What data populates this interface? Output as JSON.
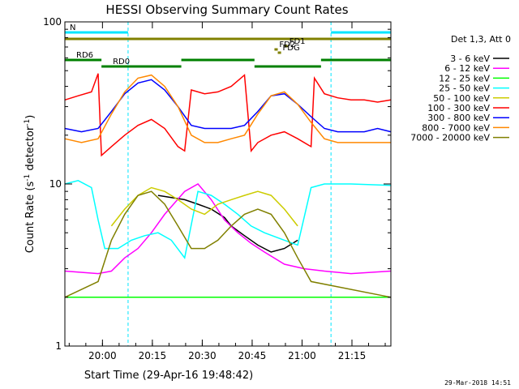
{
  "chart_data": {
    "type": "line",
    "title": "HESSI Observing Summary Count Rates",
    "xlabel": "Start Time (29-Apr-16 19:48:42)",
    "ylabel": "Count Rate (s",
    "ylabel_exp": "-1",
    "ylabel_tail": " detector",
    "ylabel_end": ")",
    "footer": "29-Mar-2018 14:51",
    "x_unit": "minutes since 19:48:42",
    "xlim": [
      0,
      98
    ],
    "ylim": [
      1,
      100
    ],
    "yscale": "log",
    "grid": false,
    "legend_position": "right",
    "x_ticks": [
      {
        "value": 11.3,
        "label": "20:00"
      },
      {
        "value": 26.3,
        "label": "20:15"
      },
      {
        "value": 41.3,
        "label": "20:30"
      },
      {
        "value": 56.3,
        "label": "20:45"
      },
      {
        "value": 71.3,
        "label": "21:00"
      },
      {
        "value": 86.3,
        "label": "21:15"
      }
    ],
    "y_ticks": [
      {
        "value": 1,
        "label": "1"
      },
      {
        "value": 10,
        "label": "10"
      },
      {
        "value": 100,
        "label": "100"
      }
    ],
    "legend_header": "Det 1,3, Att 0",
    "series": [
      {
        "name": "3 - 6 keV",
        "color": "#000000",
        "x": [
          0,
          20,
          28,
          36,
          40,
          44,
          48,
          50,
          54,
          58,
          62,
          66,
          70,
          76,
          80,
          86,
          98
        ],
        "y": [
          null,
          null,
          8.5,
          8.0,
          7.5,
          7.0,
          6.2,
          5.5,
          4.8,
          4.2,
          3.8,
          4.0,
          4.5,
          null,
          null,
          null,
          null
        ]
      },
      {
        "name": "6 - 12 keV",
        "color": "#ff00ff",
        "x": [
          0,
          10,
          14,
          18,
          22,
          26,
          30,
          36,
          40,
          44,
          48,
          52,
          56,
          60,
          66,
          72,
          78,
          86,
          98
        ],
        "y": [
          2.9,
          2.8,
          2.9,
          3.5,
          4.0,
          5.0,
          6.5,
          9.0,
          10.0,
          8.0,
          6.0,
          5.0,
          4.3,
          3.8,
          3.2,
          3.0,
          2.9,
          2.8,
          2.9
        ]
      },
      {
        "name": "12 - 25 keV",
        "color": "#00ff00",
        "x": [
          0,
          20,
          40,
          60,
          80,
          98
        ],
        "y": [
          2.0,
          2.0,
          2.0,
          2.0,
          2.0,
          2.0
        ]
      },
      {
        "name": "25 - 50 keV",
        "color": "#00ffff",
        "x": [
          0,
          4,
          8,
          10,
          12,
          16,
          20,
          24,
          28,
          32,
          36,
          40,
          44,
          48,
          52,
          56,
          60,
          66,
          70,
          74,
          78,
          86,
          98
        ],
        "y": [
          10.0,
          10.5,
          9.5,
          6.0,
          4.0,
          4.0,
          4.5,
          4.8,
          5.0,
          4.5,
          3.5,
          9.0,
          8.5,
          7.5,
          6.5,
          5.5,
          5.0,
          4.5,
          4.2,
          9.5,
          10.0,
          10.0,
          9.8
        ]
      },
      {
        "name": "50 - 100 keV",
        "color": "#cccc00",
        "x": [
          0,
          10,
          14,
          18,
          22,
          26,
          30,
          34,
          38,
          42,
          46,
          50,
          54,
          58,
          62,
          66,
          70,
          74,
          98
        ],
        "y": [
          null,
          null,
          5.5,
          7.0,
          8.5,
          9.5,
          9.0,
          8.0,
          7.0,
          6.5,
          7.5,
          8.0,
          8.5,
          9.0,
          8.5,
          7.0,
          5.5,
          null,
          null
        ]
      },
      {
        "name": "100 - 300 keV",
        "color": "#ff0000",
        "x": [
          0,
          4,
          8,
          10,
          11,
          14,
          18,
          22,
          26,
          30,
          34,
          36,
          38,
          42,
          46,
          50,
          54,
          56,
          58,
          62,
          66,
          70,
          74,
          75,
          78,
          82,
          86,
          90,
          94,
          98
        ],
        "y": [
          33,
          35,
          37,
          48,
          15,
          17,
          20,
          23,
          25,
          22,
          17,
          16,
          38,
          36,
          37,
          40,
          47,
          16,
          18,
          20,
          21,
          19,
          17,
          45,
          36,
          34,
          33,
          33,
          32,
          33
        ]
      },
      {
        "name": "300 - 800 keV",
        "color": "#0000ff",
        "x": [
          0,
          5,
          10,
          14,
          18,
          22,
          26,
          30,
          34,
          38,
          42,
          46,
          50,
          54,
          58,
          62,
          66,
          70,
          74,
          78,
          82,
          86,
          90,
          94,
          98
        ],
        "y": [
          22,
          21,
          22,
          28,
          36,
          42,
          44,
          38,
          30,
          23,
          22,
          22,
          22,
          23,
          28,
          35,
          36,
          31,
          26,
          22,
          21,
          21,
          21,
          22,
          21
        ]
      },
      {
        "name": "800 - 7000 keV",
        "color": "#ff8800",
        "x": [
          0,
          5,
          10,
          14,
          18,
          22,
          26,
          30,
          34,
          38,
          42,
          46,
          50,
          54,
          58,
          62,
          66,
          70,
          74,
          78,
          82,
          86,
          90,
          94,
          98
        ],
        "y": [
          19,
          18,
          19,
          27,
          37,
          45,
          47,
          40,
          30,
          20,
          18,
          18,
          19,
          20,
          27,
          35,
          37,
          31,
          24,
          19,
          18,
          18,
          18,
          18,
          18
        ]
      },
      {
        "name": "7000 - 20000 keV",
        "color": "#808000",
        "x": [
          0,
          10,
          14,
          18,
          22,
          26,
          30,
          34,
          38,
          42,
          46,
          50,
          54,
          58,
          62,
          66,
          70,
          74,
          98
        ],
        "y": [
          2.0,
          2.5,
          4.5,
          6.5,
          8.5,
          9.0,
          7.5,
          5.5,
          4.0,
          4.0,
          4.5,
          5.5,
          6.5,
          7.0,
          6.5,
          5.0,
          3.5,
          2.5,
          2.0
        ]
      }
    ],
    "status_bars": [
      {
        "label": "N",
        "color": "#00e5ff",
        "segments": [
          [
            0,
            19
          ],
          [
            80,
            98
          ]
        ]
      },
      {
        "label": "",
        "color": "#808000",
        "segments": [
          [
            0,
            98
          ]
        ]
      },
      {
        "label": "FD1",
        "color": "#808000",
        "segments": [
          [
            66,
            67
          ]
        ]
      },
      {
        "label": "FD2",
        "color": "#808000",
        "segments": [
          [
            63,
            64
          ]
        ]
      },
      {
        "label": "FDG",
        "color": "#808000",
        "segments": [
          [
            64,
            65
          ]
        ]
      },
      {
        "label": "RD0",
        "color": "#008000",
        "segments": [
          [
            11,
            35
          ],
          [
            57,
            77
          ]
        ]
      },
      {
        "label": "RD6",
        "color": "#008000",
        "segments": [
          [
            0,
            11
          ],
          [
            35,
            57
          ],
          [
            77,
            98
          ]
        ]
      }
    ]
  }
}
